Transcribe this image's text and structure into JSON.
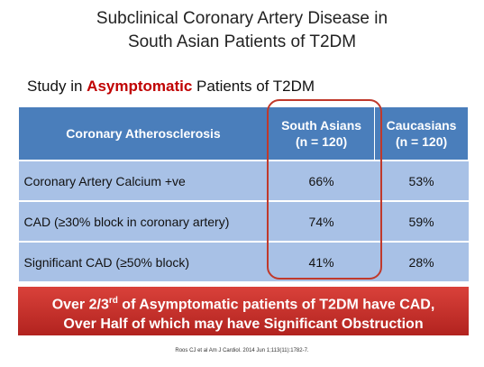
{
  "title": {
    "line1": "Subclinical Coronary Artery Disease in",
    "line2": "South Asian Patients of T2DM"
  },
  "subtitle": {
    "before": "Study in",
    "highlight": "Asymptomatic",
    "after": "Patients of T2DM"
  },
  "table": {
    "header": [
      [
        "Coronary Atherosclerosis"
      ],
      [
        "South Asians",
        "(n = 120)"
      ],
      [
        "Caucasians",
        "(n = 120)"
      ]
    ],
    "rows": [
      [
        "Coronary Artery  Calcium +ve",
        "66%",
        "53%"
      ],
      [
        "CAD (≥30% block in coronary artery)",
        "74%",
        "59%"
      ],
      [
        "Significant CAD (≥50% block)",
        "41%",
        "28%"
      ]
    ]
  },
  "callout": {
    "line1_start": "Over 2/3",
    "line1_sup": "rd",
    "line1_end": "of Asymptomatic patients of T2DM have CAD,",
    "line2": "Over Half of which may have Significant Obstruction"
  },
  "footnote": "Roos CJ et al Am J Cardiol. 2014 Jun 1;113(11):1782-7."
}
